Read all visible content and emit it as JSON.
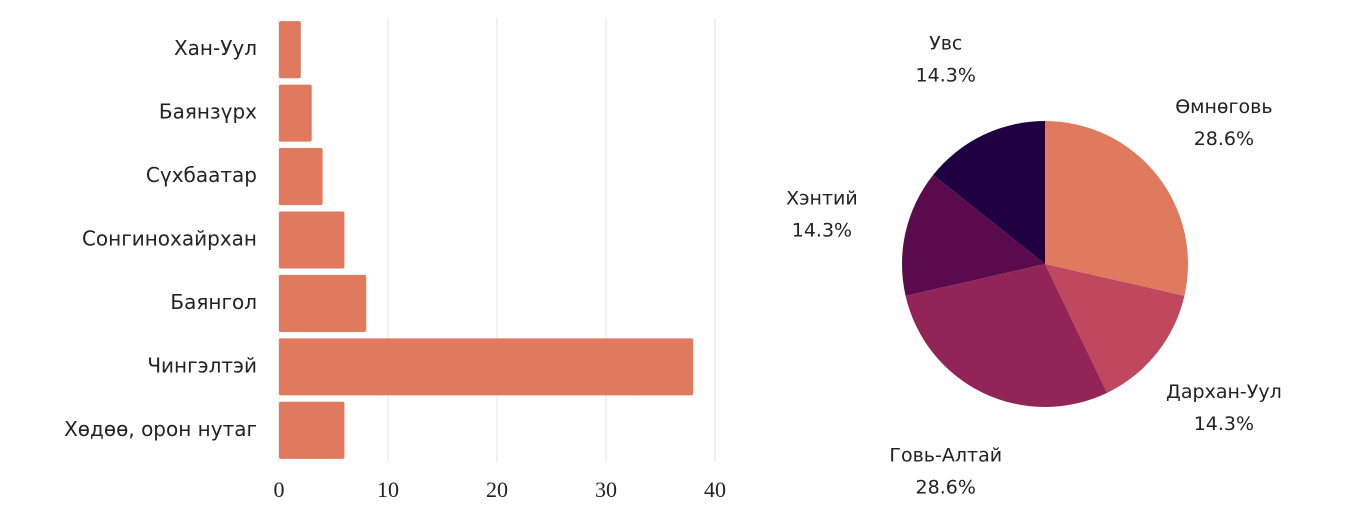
{
  "chart_data": [
    {
      "type": "hbar",
      "categories": [
        "Хан-Уул",
        "Баянзүрх",
        "Сүхбаатар",
        "Сонгинохайрхан",
        "Баянгол",
        "Чингэлтэй",
        "Хөдөө, орон нутаг"
      ],
      "values": [
        2,
        3,
        4,
        6,
        8,
        38,
        6
      ],
      "color": "#e07a5f",
      "xlim": [
        0,
        40
      ],
      "xticks": [
        0,
        10,
        20,
        30,
        40
      ],
      "grid": true
    },
    {
      "type": "pie",
      "categories": [
        "Өмнөговь",
        "Дархан-Уул",
        "Говь-Алтай",
        "Хэнтий",
        "Увс"
      ],
      "values": [
        28.6,
        14.3,
        28.6,
        14.3,
        14.3
      ],
      "value_labels": [
        "28.6%",
        "14.3%",
        "28.6%",
        "14.3%",
        "14.3%"
      ],
      "colors": [
        "#e07a5f",
        "#c0485e",
        "#922458",
        "#5a0b4d",
        "#1f0040"
      ]
    }
  ]
}
